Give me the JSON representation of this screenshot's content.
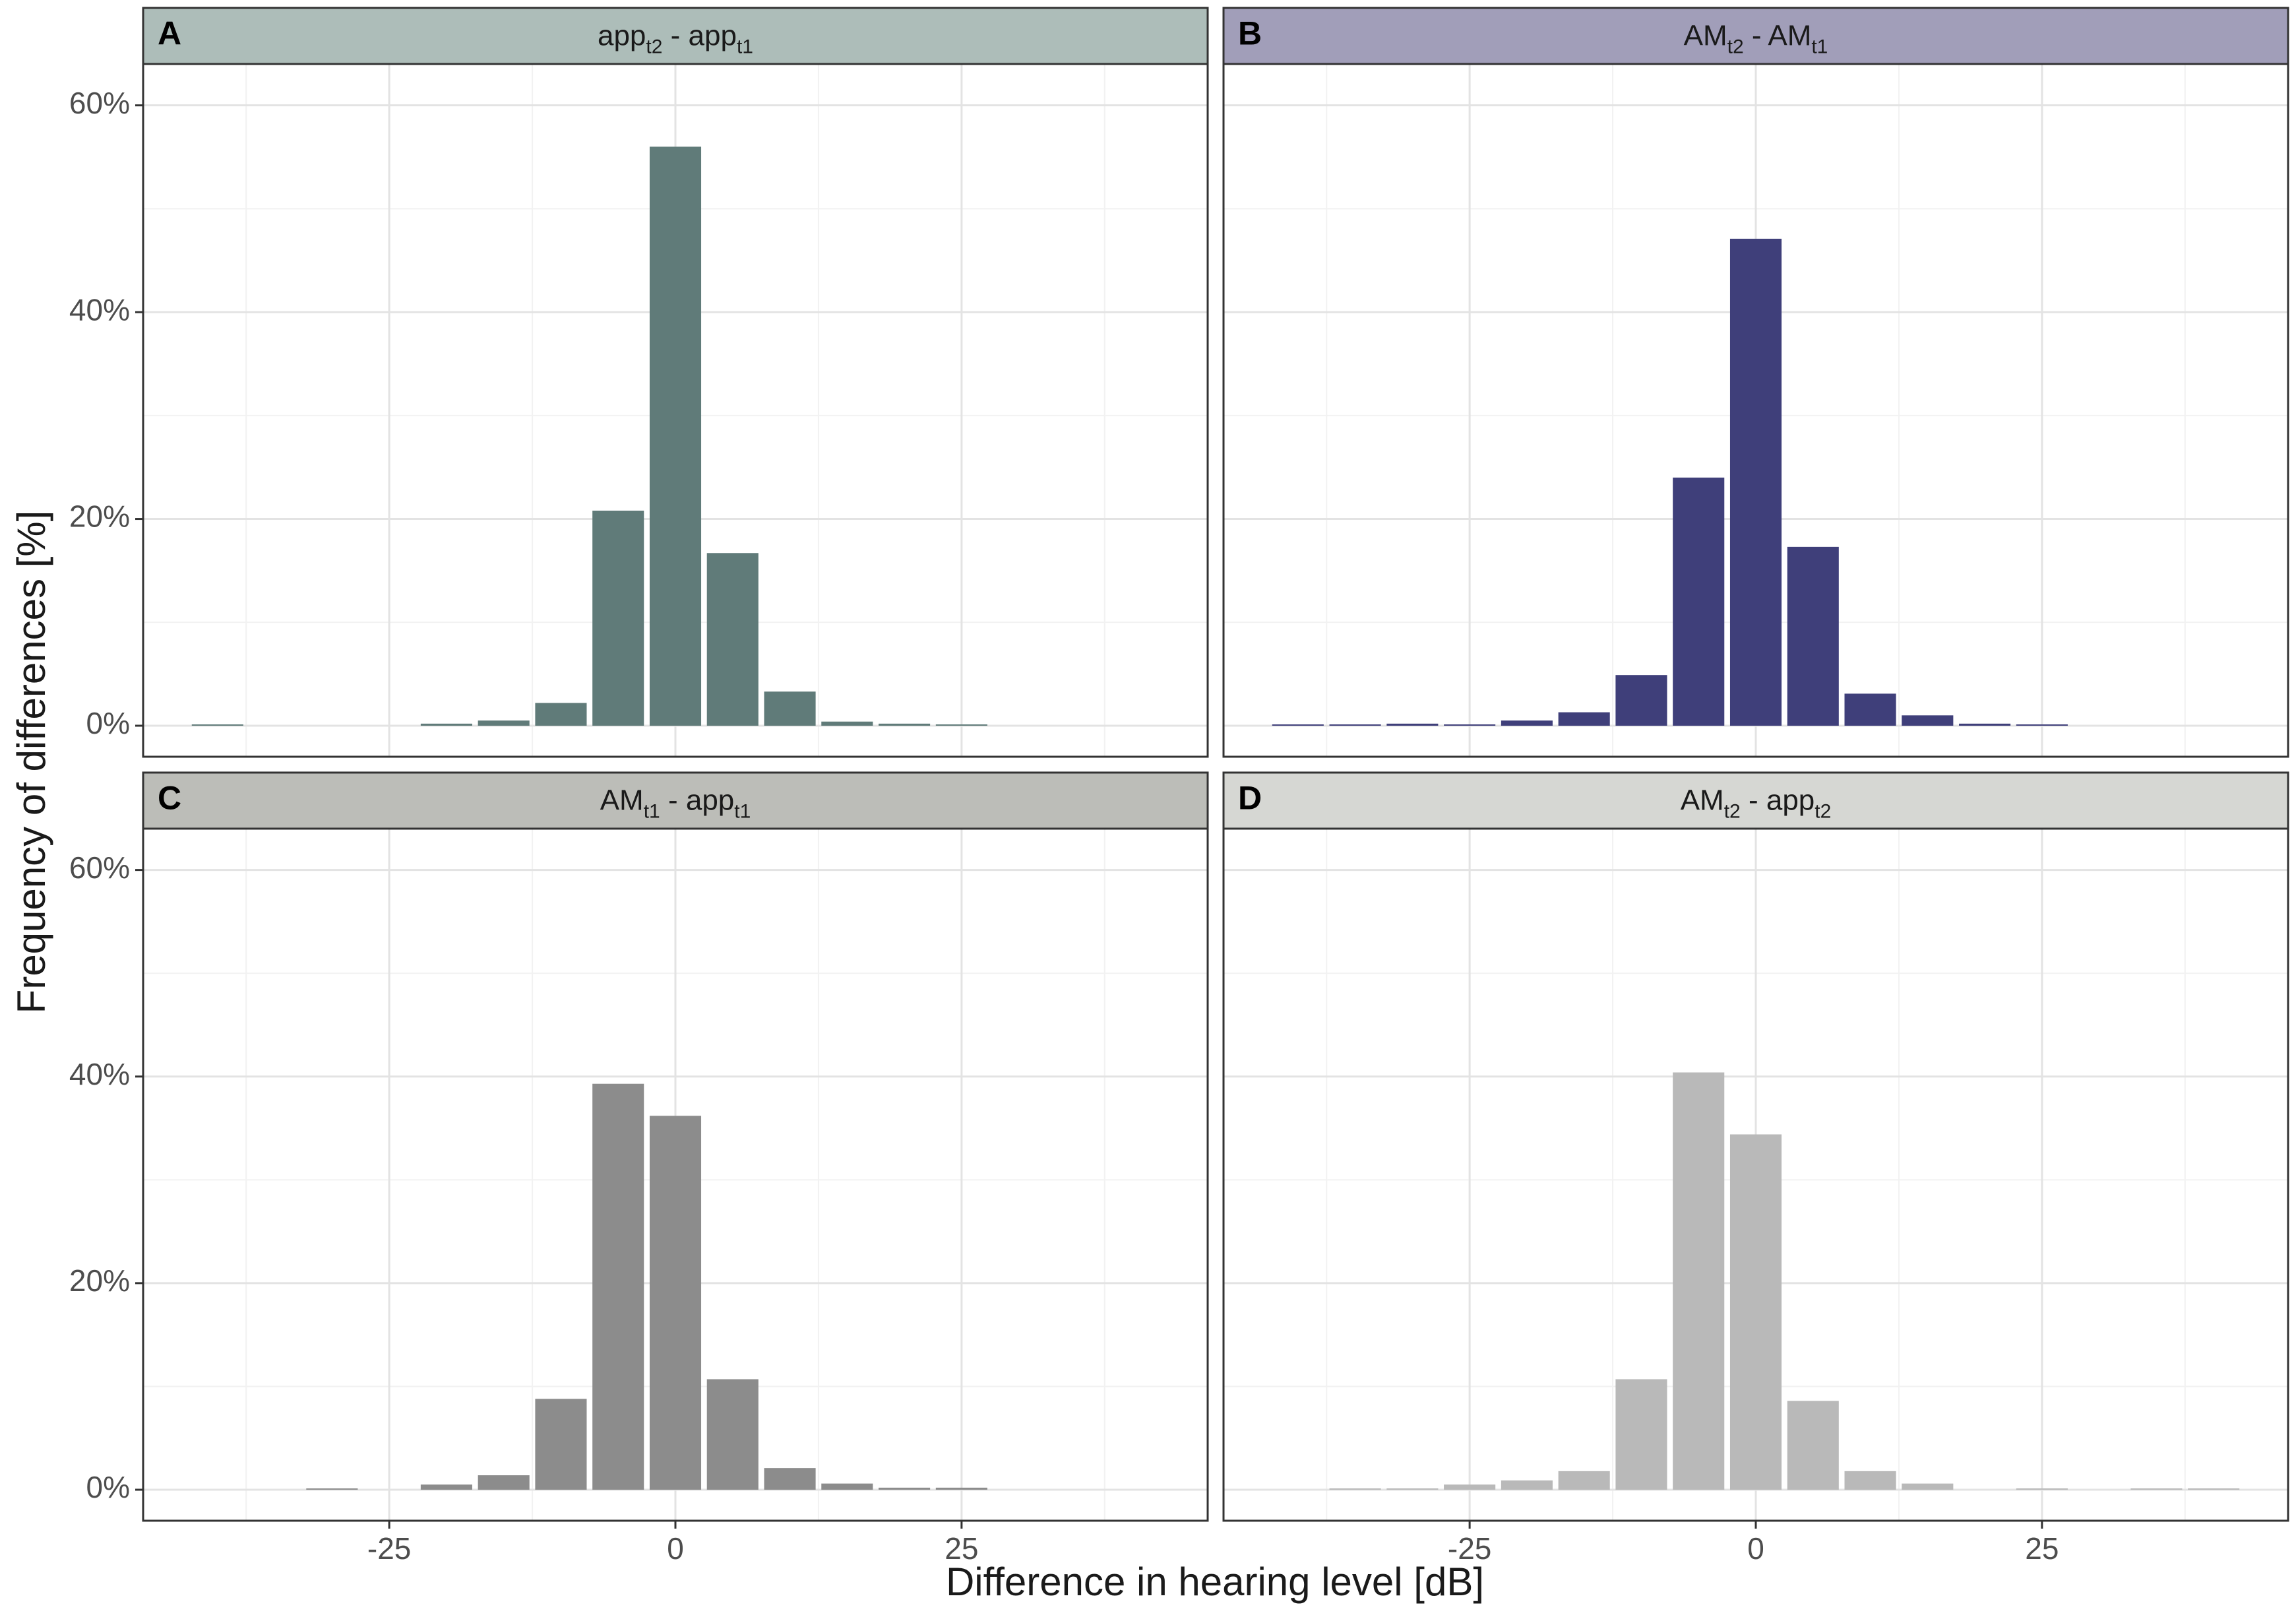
{
  "figure": {
    "ylabel": "Frequency of differences [%]",
    "xlabel": "Difference in hearing level [dB]",
    "y_ticks": [
      0,
      20,
      40,
      60
    ],
    "y_tick_labels": [
      "0%",
      "20%",
      "40%",
      "60%"
    ],
    "x_ticks": [
      -25,
      0,
      25
    ],
    "x_tick_labels": [
      "-25",
      "0",
      "25"
    ],
    "xlim": [
      -46.5,
      46.5
    ],
    "ylim": [
      -3,
      64
    ]
  },
  "chart_data": [
    {
      "type": "bar",
      "panel": "A",
      "title": {
        "base1": "app",
        "sub1": "t2",
        "sep": " - ",
        "base2": "app",
        "sub2": "t1"
      },
      "strip_color": "#adbdb9",
      "bar_color": "#607b79",
      "x": [
        -40,
        -20,
        -15,
        -10,
        -5,
        0,
        5,
        10,
        15,
        20,
        25
      ],
      "values": [
        0.1,
        0.2,
        0.5,
        2.2,
        20.8,
        56.0,
        16.7,
        3.3,
        0.4,
        0.2,
        0.1
      ],
      "xlabel": "Difference in hearing level [dB]",
      "ylabel": "Frequency of differences [%]"
    },
    {
      "type": "bar",
      "panel": "B",
      "title": {
        "base1": "AM",
        "sub1": "t2",
        "sep": " - ",
        "base2": "AM",
        "sub2": "t1"
      },
      "strip_color": "#a19eb9",
      "bar_color": "#3f3f7a",
      "x": [
        -40,
        -35,
        -30,
        -25,
        -20,
        -15,
        -10,
        -5,
        0,
        5,
        10,
        15,
        20,
        25
      ],
      "values": [
        0.1,
        0.1,
        0.2,
        0.1,
        0.5,
        1.3,
        4.9,
        24.0,
        47.1,
        17.3,
        3.1,
        1.0,
        0.2,
        0.1
      ],
      "xlabel": "Difference in hearing level [dB]",
      "ylabel": "Frequency of differences [%]"
    },
    {
      "type": "bar",
      "panel": "C",
      "title": {
        "base1": "AM",
        "sub1": "t1",
        "sep": " - ",
        "base2": "app",
        "sub2": "t1"
      },
      "strip_color": "#bcbdb8",
      "bar_color": "#8c8c8c",
      "x": [
        -30,
        -20,
        -15,
        -10,
        -5,
        0,
        5,
        10,
        15,
        20,
        25
      ],
      "values": [
        0.1,
        0.5,
        1.4,
        8.8,
        39.3,
        36.2,
        10.7,
        2.1,
        0.6,
        0.2,
        0.2
      ],
      "xlabel": "Difference in hearing level [dB]",
      "ylabel": "Frequency of differences [%]"
    },
    {
      "type": "bar",
      "panel": "D",
      "title": {
        "base1": "AM",
        "sub1": "t2",
        "sep": " - ",
        "base2": "app",
        "sub2": "t2"
      },
      "strip_color": "#d6d7d3",
      "bar_color": "#b9b9b9",
      "x": [
        -35,
        -30,
        -25,
        -20,
        -15,
        -10,
        -5,
        0,
        5,
        10,
        15,
        25,
        35,
        40
      ],
      "values": [
        0.1,
        0.1,
        0.5,
        0.9,
        1.8,
        10.7,
        40.4,
        34.4,
        8.6,
        1.8,
        0.6,
        0.1,
        0.1,
        0.1
      ],
      "xlabel": "Difference in hearing level [dB]",
      "ylabel": "Frequency of differences [%]"
    }
  ]
}
